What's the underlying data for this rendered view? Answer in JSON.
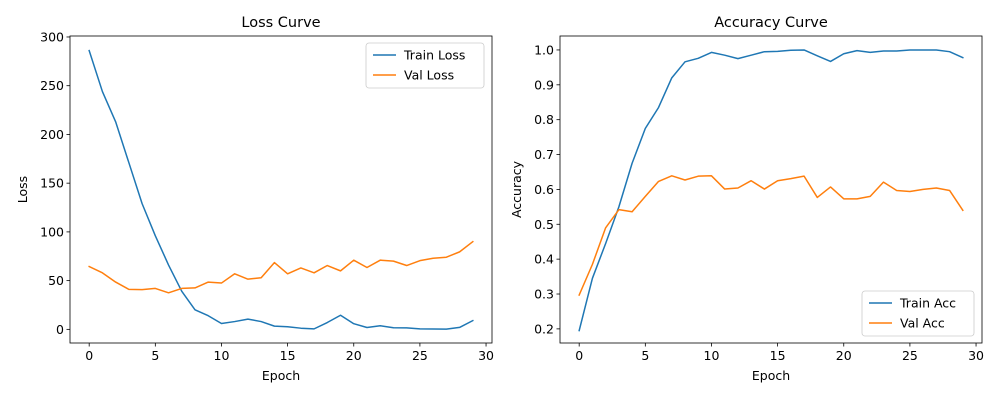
{
  "chart_data": [
    {
      "type": "line",
      "title": "Loss Curve",
      "xlabel": "Epoch",
      "ylabel": "Loss",
      "xlim": [
        -1.45,
        30.45
      ],
      "ylim": [
        -14,
        301
      ],
      "xticks": [
        0,
        5,
        10,
        15,
        20,
        25,
        30
      ],
      "yticks": [
        0,
        50,
        100,
        150,
        200,
        250,
        300
      ],
      "grid": false,
      "legend_position": "top-right",
      "x": [
        0,
        1,
        2,
        3,
        4,
        5,
        6,
        7,
        8,
        9,
        10,
        11,
        12,
        13,
        14,
        15,
        16,
        17,
        18,
        19,
        20,
        21,
        22,
        23,
        24,
        25,
        26,
        27,
        28,
        29
      ],
      "series": [
        {
          "name": "Train Loss",
          "color": "#1f77b4",
          "values": [
            286,
            244,
            213,
            171,
            129,
            96,
            66,
            39,
            20,
            14,
            6,
            8,
            10.5,
            8,
            3.3,
            2.7,
            1.2,
            0.5,
            7,
            14.5,
            5.8,
            1.9,
            3.7,
            1.6,
            1.5,
            0.5,
            0.3,
            0.2,
            2,
            9
          ]
        },
        {
          "name": "Val Loss",
          "color": "#ff7f0e",
          "values": [
            64.5,
            58,
            48.5,
            41,
            40.8,
            42,
            37.5,
            42,
            42.5,
            48.5,
            47.5,
            57,
            51.5,
            53,
            68.5,
            57,
            63,
            58,
            65.5,
            60,
            71,
            63.5,
            71,
            70,
            65.5,
            70.5,
            73,
            74,
            79.5,
            90
          ]
        }
      ]
    },
    {
      "type": "line",
      "title": "Accuracy Curve",
      "xlabel": "Epoch",
      "ylabel": "Accuracy",
      "xlim": [
        -1.45,
        30.45
      ],
      "ylim": [
        0.1595,
        1.04
      ],
      "xticks": [
        0,
        5,
        10,
        15,
        20,
        25,
        30
      ],
      "yticks": [
        "0.2",
        "0.3",
        "0.4",
        "0.5",
        "0.6",
        "0.7",
        "0.8",
        "0.9",
        "1.0"
      ],
      "grid": false,
      "legend_position": "bottom-right",
      "x": [
        0,
        1,
        2,
        3,
        4,
        5,
        6,
        7,
        8,
        9,
        10,
        11,
        12,
        13,
        14,
        15,
        16,
        17,
        18,
        19,
        20,
        21,
        22,
        23,
        24,
        25,
        26,
        27,
        28,
        29
      ],
      "series": [
        {
          "name": "Train Acc",
          "color": "#1f77b4",
          "values": [
            0.195,
            0.345,
            0.445,
            0.55,
            0.675,
            0.775,
            0.835,
            0.92,
            0.966,
            0.976,
            0.993,
            0.985,
            0.975,
            0.985,
            0.995,
            0.996,
            0.999,
            1.0,
            0.983,
            0.967,
            0.989,
            0.998,
            0.993,
            0.997,
            0.997,
            1.0,
            1.0,
            1.0,
            0.995,
            0.978
          ]
        },
        {
          "name": "Val Acc",
          "color": "#ff7f0e",
          "values": [
            0.297,
            0.385,
            0.49,
            0.542,
            0.536,
            0.58,
            0.623,
            0.639,
            0.627,
            0.638,
            0.639,
            0.601,
            0.604,
            0.625,
            0.601,
            0.625,
            0.631,
            0.638,
            0.577,
            0.607,
            0.573,
            0.573,
            0.58,
            0.621,
            0.597,
            0.594,
            0.6,
            0.604,
            0.597,
            0.54
          ]
        }
      ]
    }
  ]
}
